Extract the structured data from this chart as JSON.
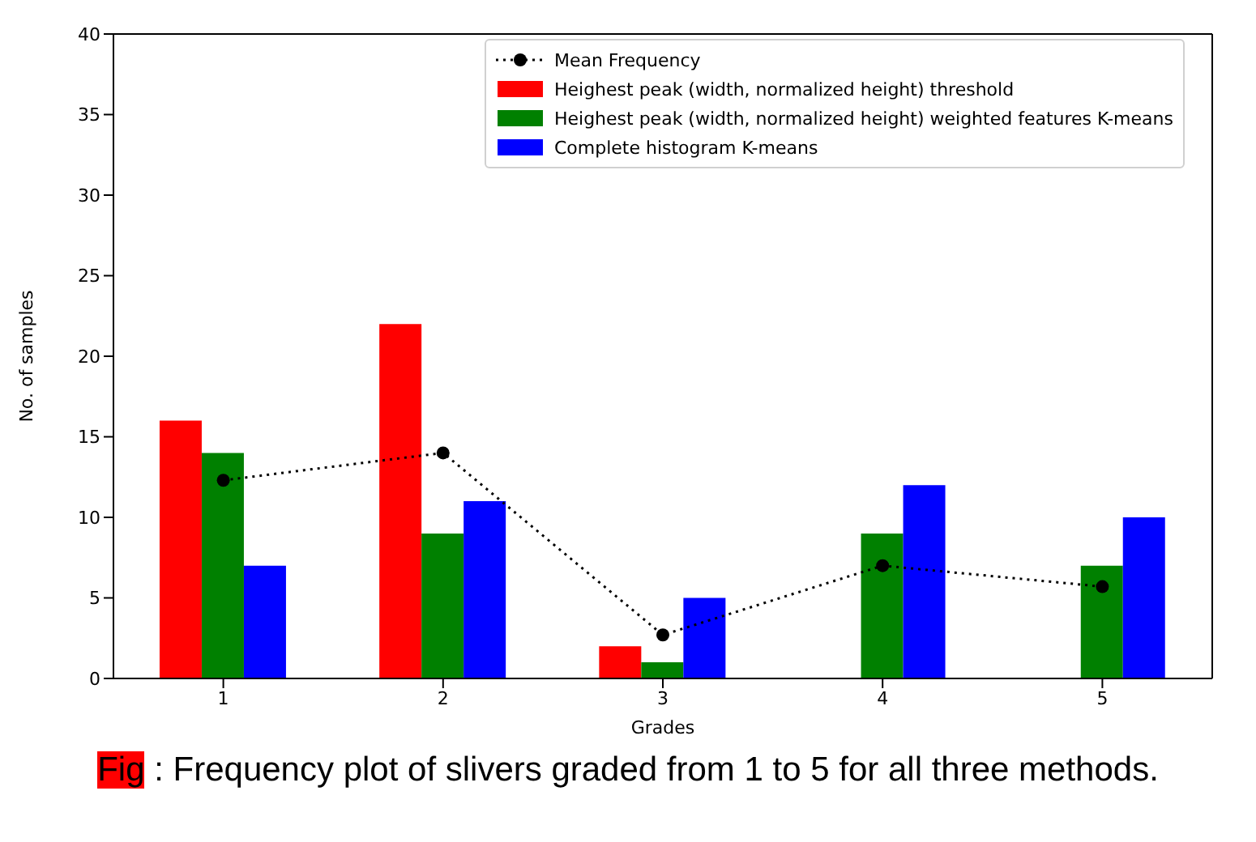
{
  "chart_data": {
    "type": "bar",
    "xlabel": "Grades",
    "ylabel": "No. of samples",
    "categories": [
      "1",
      "2",
      "3",
      "4",
      "5"
    ],
    "series": [
      {
        "name": "Mean Frequency",
        "type": "line",
        "color": "#000000",
        "values": [
          12.3,
          14,
          2.7,
          7,
          5.7
        ],
        "marker": "circle",
        "line_style": "dotted"
      },
      {
        "name": "Heighest peak (width, normalized height) threshold",
        "color": "#ff0000",
        "values": [
          16,
          22,
          2,
          0,
          0
        ]
      },
      {
        "name": "Heighest peak (width, normalized height) weighted features K-means",
        "color": "#008000",
        "values": [
          14,
          9,
          1,
          9,
          7
        ]
      },
      {
        "name": "Complete histogram K-means",
        "color": "#0000ff",
        "values": [
          7,
          11,
          5,
          12,
          10
        ]
      }
    ],
    "ylim": [
      0,
      40
    ],
    "yticks": [
      0,
      5,
      10,
      15,
      20,
      25,
      30,
      35,
      40
    ],
    "grid": false,
    "legend": "top right",
    "annotations": [
      "Fig : Frequency plot of slivers graded from 1 to 5 for all three methods."
    ]
  }
}
